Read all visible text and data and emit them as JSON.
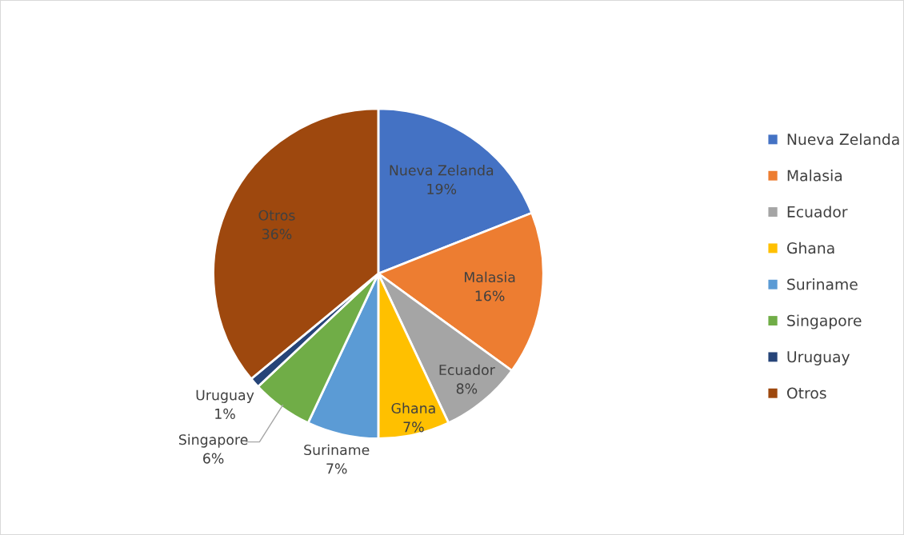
{
  "chart_data": {
    "type": "pie",
    "categories": [
      "Nueva Zelanda",
      "Malasia",
      "Ecuador",
      "Ghana",
      "Suriname",
      "Singapore",
      "Uruguay",
      "Otros"
    ],
    "values": [
      19,
      16,
      8,
      7,
      7,
      6,
      1,
      36
    ],
    "value_labels": [
      "19%",
      "16%",
      "8%",
      "7%",
      "7%",
      "6%",
      "1%",
      "36%"
    ],
    "colors": [
      "#4472c4",
      "#ed7d31",
      "#a5a5a5",
      "#ffc000",
      "#5b9bd5",
      "#70ad47",
      "#264478",
      "#9e480e"
    ],
    "legend": "right"
  }
}
